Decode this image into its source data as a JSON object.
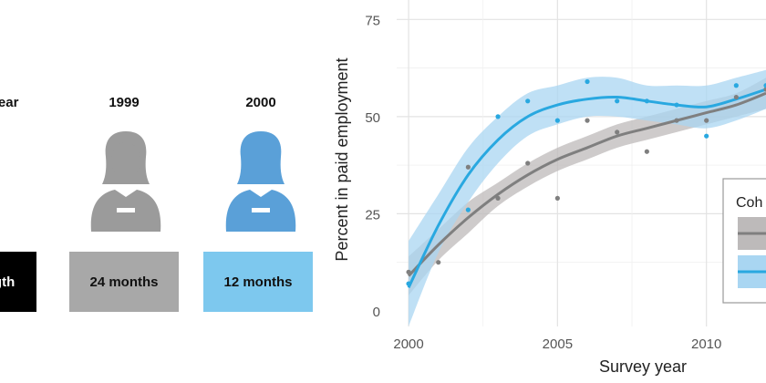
{
  "infographic": {
    "col0_header": "year",
    "col0_box": "ngth",
    "col1_header": "1999",
    "col1_box": "24 months",
    "col2_header": "2000",
    "col2_box": "12 months",
    "colors": {
      "black": "#000000",
      "gray_box": "#a8a8a8",
      "blue_box": "#7dc8ee",
      "gray_person": "#9b9b9b",
      "blue_person": "#5aa0d8"
    }
  },
  "chart_data": {
    "type": "scatter",
    "xlabel": "Survey year",
    "ylabel": "Percent in paid employment",
    "xlim": [
      1999.6,
      2012.0
    ],
    "ylim": [
      -4,
      80
    ],
    "x_ticks": [
      2000,
      2005,
      2010
    ],
    "y_ticks": [
      0,
      25,
      50,
      75
    ],
    "grid": true,
    "legend": {
      "title": "Coh",
      "placement": "right"
    },
    "series": [
      {
        "color": "#7f7f7f",
        "points": [
          [
            2000,
            10
          ],
          [
            2001,
            12.5
          ],
          [
            2002,
            37
          ],
          [
            2003,
            29
          ],
          [
            2004,
            38
          ],
          [
            2005,
            29
          ],
          [
            2006,
            49
          ],
          [
            2007,
            46
          ],
          [
            2008,
            41
          ],
          [
            2009,
            49
          ],
          [
            2010,
            49
          ],
          [
            2011,
            55
          ],
          [
            2012,
            57
          ]
        ],
        "smooth": [
          [
            2000,
            9
          ],
          [
            2001,
            17
          ],
          [
            2002,
            24
          ],
          [
            2003,
            30
          ],
          [
            2004,
            35
          ],
          [
            2005,
            39
          ],
          [
            2006,
            42
          ],
          [
            2007,
            45
          ],
          [
            2008,
            47
          ],
          [
            2009,
            49
          ],
          [
            2010,
            51
          ],
          [
            2011,
            53
          ],
          [
            2012,
            56
          ]
        ],
        "band": [
          [
            2000,
            4,
            14
          ],
          [
            2001,
            13,
            21
          ],
          [
            2002,
            20,
            28
          ],
          [
            2003,
            27,
            33
          ],
          [
            2004,
            32,
            38
          ],
          [
            2005,
            36,
            42
          ],
          [
            2006,
            39,
            45
          ],
          [
            2007,
            42,
            48
          ],
          [
            2008,
            44,
            50
          ],
          [
            2009,
            46,
            52
          ],
          [
            2010,
            48,
            54
          ],
          [
            2011,
            50,
            56
          ],
          [
            2012,
            52,
            60
          ]
        ]
      },
      {
        "color": "#29a8e0",
        "points": [
          [
            2000,
            7
          ],
          [
            2002,
            26
          ],
          [
            2003,
            50
          ],
          [
            2004,
            54
          ],
          [
            2005,
            49
          ],
          [
            2006,
            59
          ],
          [
            2007,
            54
          ],
          [
            2008,
            54
          ],
          [
            2009,
            53
          ],
          [
            2010,
            45
          ],
          [
            2011,
            58
          ],
          [
            2012,
            58
          ]
        ],
        "smooth": [
          [
            2000,
            6
          ],
          [
            2001,
            22
          ],
          [
            2002,
            35
          ],
          [
            2003,
            44
          ],
          [
            2004,
            50
          ],
          [
            2005,
            53
          ],
          [
            2006,
            54.5
          ],
          [
            2007,
            55
          ],
          [
            2008,
            54
          ],
          [
            2009,
            53
          ],
          [
            2010,
            52.5
          ],
          [
            2011,
            54.5
          ],
          [
            2012,
            57
          ]
        ],
        "band": [
          [
            2000,
            -4,
            18
          ],
          [
            2001,
            15,
            30
          ],
          [
            2002,
            28,
            42
          ],
          [
            2003,
            38,
            50
          ],
          [
            2004,
            45,
            56
          ],
          [
            2005,
            48,
            58
          ],
          [
            2006,
            50,
            60
          ],
          [
            2007,
            50,
            60
          ],
          [
            2008,
            49,
            58
          ],
          [
            2009,
            48,
            58
          ],
          [
            2010,
            47,
            58
          ],
          [
            2011,
            49,
            60
          ],
          [
            2012,
            52,
            62
          ]
        ]
      }
    ]
  }
}
